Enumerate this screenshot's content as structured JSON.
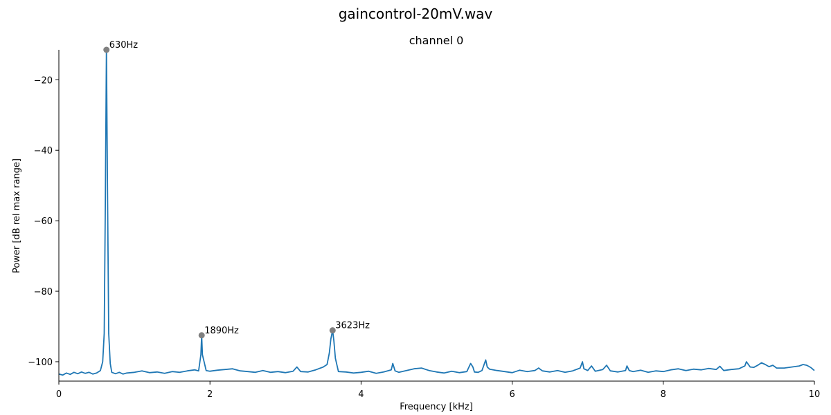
{
  "figure": {
    "suptitle": "gaincontrol-20mV.wav"
  },
  "chart_data": {
    "type": "line",
    "title": "channel 0",
    "xlabel": "Frequency [kHz]",
    "ylabel": "Power [dB rel max range]",
    "xlim": [
      0,
      10
    ],
    "ylim": [
      -105.5,
      -11.5
    ],
    "x_ticks": [
      0,
      2,
      4,
      6,
      8,
      10
    ],
    "x_tick_labels": [
      "0",
      "2",
      "4",
      "6",
      "8",
      "10"
    ],
    "y_ticks": [
      -20,
      -40,
      -60,
      -80,
      -100
    ],
    "y_tick_labels": [
      "−20",
      "−40",
      "−60",
      "−80",
      "−100"
    ],
    "grid": false,
    "line_color": "#1f77b4",
    "marker_color": "#808080",
    "series": [
      {
        "x": [
          0.0,
          0.05,
          0.1,
          0.15,
          0.2,
          0.25,
          0.3,
          0.35,
          0.4,
          0.45,
          0.5,
          0.55,
          0.58,
          0.6,
          0.615,
          0.63,
          0.645,
          0.66,
          0.68,
          0.7,
          0.75,
          0.8,
          0.85,
          0.9,
          1.0,
          1.1,
          1.2,
          1.3,
          1.4,
          1.5,
          1.6,
          1.7,
          1.8,
          1.85,
          1.88,
          1.89,
          1.9,
          1.95,
          2.0,
          2.1,
          2.2,
          2.3,
          2.4,
          2.5,
          2.6,
          2.7,
          2.8,
          2.9,
          3.0,
          3.1,
          3.15,
          3.2,
          3.3,
          3.4,
          3.5,
          3.55,
          3.58,
          3.6,
          3.623,
          3.64,
          3.66,
          3.7,
          3.8,
          3.9,
          4.0,
          4.1,
          4.2,
          4.3,
          4.4,
          4.42,
          4.45,
          4.5,
          4.6,
          4.7,
          4.8,
          4.9,
          5.0,
          5.1,
          5.2,
          5.3,
          5.4,
          5.45,
          5.48,
          5.5,
          5.55,
          5.6,
          5.65,
          5.67,
          5.7,
          5.8,
          5.9,
          6.0,
          6.1,
          6.2,
          6.3,
          6.35,
          6.4,
          6.5,
          6.6,
          6.7,
          6.8,
          6.9,
          6.93,
          6.95,
          7.0,
          7.05,
          7.1,
          7.2,
          7.25,
          7.3,
          7.4,
          7.5,
          7.52,
          7.55,
          7.6,
          7.7,
          7.8,
          7.9,
          8.0,
          8.1,
          8.2,
          8.3,
          8.4,
          8.5,
          8.6,
          8.7,
          8.75,
          8.8,
          8.9,
          9.0,
          9.05,
          9.08,
          9.1,
          9.15,
          9.2,
          9.25,
          9.3,
          9.35,
          9.4,
          9.45,
          9.5,
          9.6,
          9.7,
          9.8,
          9.85,
          9.9,
          9.95,
          10.0
        ],
        "y": [
          -103.5,
          -103.8,
          -103.2,
          -103.6,
          -103.0,
          -103.4,
          -102.9,
          -103.3,
          -103.0,
          -103.5,
          -103.2,
          -102.5,
          -100.0,
          -92.0,
          -55.0,
          -11.5,
          -55.0,
          -92.0,
          -100.5,
          -103.0,
          -103.4,
          -103.0,
          -103.5,
          -103.2,
          -103.0,
          -102.6,
          -103.1,
          -102.9,
          -103.3,
          -102.8,
          -103.0,
          -102.6,
          -102.3,
          -102.6,
          -98.0,
          -92.5,
          -98.0,
          -102.5,
          -102.7,
          -102.4,
          -102.2,
          -102.0,
          -102.6,
          -102.8,
          -103.0,
          -102.5,
          -103.0,
          -102.8,
          -103.1,
          -102.7,
          -101.5,
          -102.8,
          -102.9,
          -102.3,
          -101.5,
          -100.8,
          -97.5,
          -93.5,
          -91.1,
          -94.0,
          -99.0,
          -102.8,
          -102.9,
          -103.2,
          -103.0,
          -102.7,
          -103.3,
          -102.9,
          -102.3,
          -100.5,
          -102.6,
          -103.0,
          -102.5,
          -102.0,
          -101.8,
          -102.5,
          -102.9,
          -103.2,
          -102.7,
          -103.1,
          -102.8,
          -100.5,
          -101.5,
          -102.9,
          -103.0,
          -102.5,
          -99.5,
          -101.5,
          -102.1,
          -102.5,
          -102.8,
          -103.1,
          -102.4,
          -102.8,
          -102.5,
          -101.8,
          -102.6,
          -102.9,
          -102.5,
          -103.0,
          -102.6,
          -101.8,
          -100.0,
          -102.0,
          -102.5,
          -101.2,
          -102.7,
          -102.2,
          -101.0,
          -102.6,
          -102.9,
          -102.5,
          -101.2,
          -102.5,
          -102.8,
          -102.4,
          -103.0,
          -102.6,
          -102.8,
          -102.3,
          -102.0,
          -102.5,
          -102.1,
          -102.3,
          -101.9,
          -102.2,
          -101.3,
          -102.5,
          -102.2,
          -102.0,
          -101.5,
          -101.2,
          -100.0,
          -101.5,
          -101.6,
          -101.0,
          -100.3,
          -100.8,
          -101.4,
          -101.0,
          -101.8,
          -101.8,
          -101.5,
          -101.2,
          -100.8,
          -101.0,
          -101.6,
          -102.5
        ]
      }
    ],
    "peaks": [
      {
        "x": 0.63,
        "y": -11.5,
        "label": "630Hz"
      },
      {
        "x": 1.89,
        "y": -92.5,
        "label": "1890Hz"
      },
      {
        "x": 3.623,
        "y": -91.1,
        "label": "3623Hz"
      }
    ]
  }
}
